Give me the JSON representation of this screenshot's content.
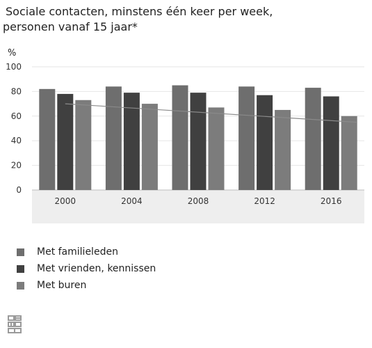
{
  "title": {
    "line1": "Sociale contacten, minstens één keer per week,",
    "line2": "personen vanaf 15 jaar*"
  },
  "colors": {
    "familieleden": "#6e6e6e",
    "vrienden": "#404040",
    "buren": "#7c7c7c",
    "trend": "#8a8a8a",
    "axis_band": "#eeeeee",
    "grid": "#e6e6e6"
  },
  "logo": "cbs-logo",
  "chart_data": {
    "type": "bar",
    "ylabel": "%",
    "ylim": [
      0,
      100
    ],
    "yticks": [
      0,
      20,
      40,
      60,
      80,
      100
    ],
    "grid": true,
    "legend_position": "bottom-left",
    "categories": [
      "2000",
      "2004",
      "2008",
      "2012",
      "2016"
    ],
    "series": [
      {
        "name": "Met familieleden",
        "values": [
          82,
          84,
          85,
          84,
          83
        ]
      },
      {
        "name": "Met vrienden, kennissen",
        "values": [
          78,
          79,
          79,
          77,
          76
        ]
      },
      {
        "name": "Met buren",
        "values": [
          73,
          70,
          67,
          65,
          60
        ]
      }
    ],
    "trendline": {
      "series": "Met buren",
      "start": 70,
      "end": 55
    }
  }
}
